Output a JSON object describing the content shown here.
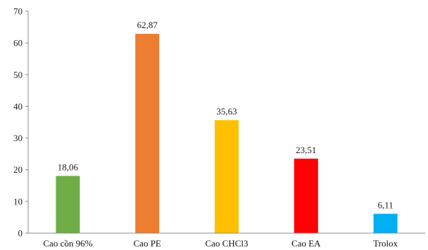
{
  "chart_data": {
    "type": "bar",
    "title": "",
    "xlabel": "",
    "ylabel": "",
    "ylim": [
      0,
      70
    ],
    "yticks": [
      0,
      10,
      20,
      30,
      40,
      50,
      60,
      70
    ],
    "grid": false,
    "legend": "none",
    "categories": [
      "Cao cồn 96%",
      "Cao PE",
      "Cao CHCl3",
      "Cao EA",
      "Trolox"
    ],
    "values": [
      18.06,
      62.87,
      35.63,
      23.51,
      6.11
    ],
    "value_labels": [
      "18,06",
      "62,87",
      "35,63",
      "23,51",
      "6,11"
    ],
    "colors": [
      "#70AD47",
      "#ED7D31",
      "#FFC000",
      "#FF0000",
      "#00B0F0"
    ]
  }
}
